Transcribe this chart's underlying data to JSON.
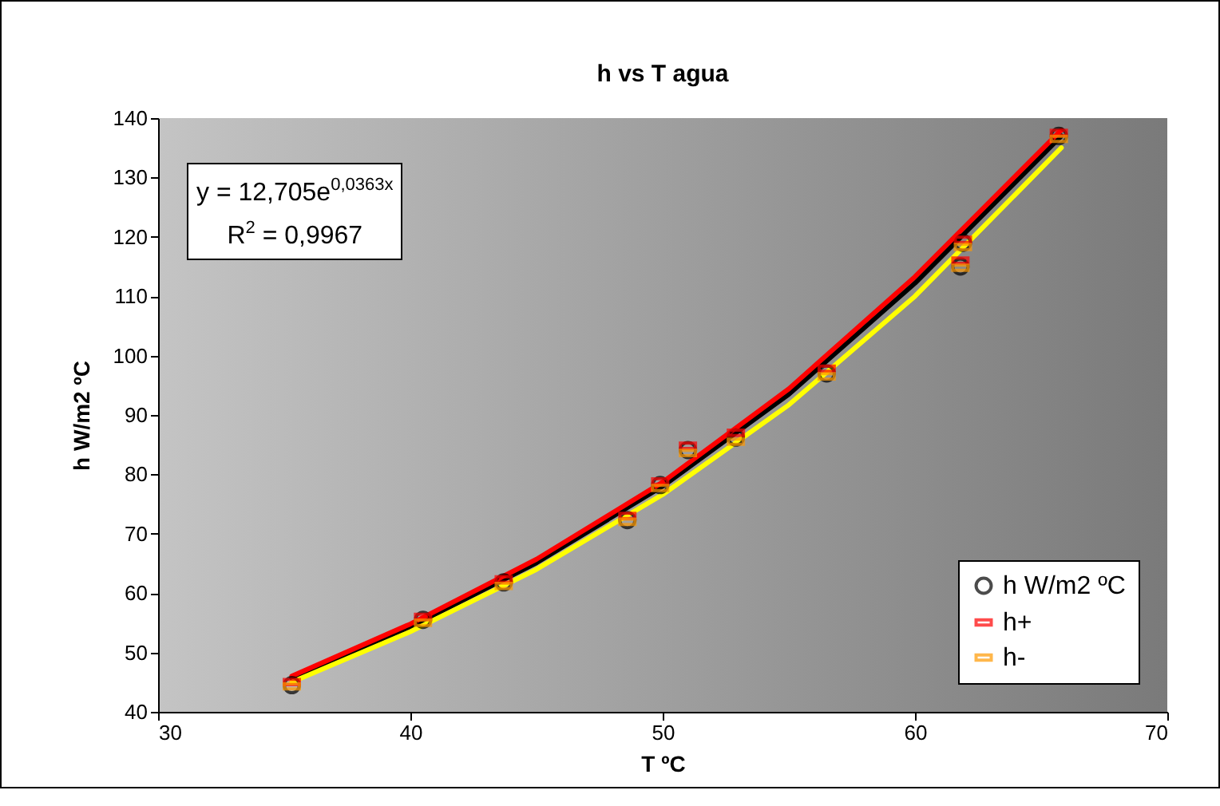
{
  "chart_data": {
    "type": "scatter",
    "title": "h vs T agua",
    "xlabel": "T ºC",
    "ylabel": "h W/m2 ºC",
    "xlim": [
      30,
      70
    ],
    "xticks": [
      30,
      40,
      50,
      60,
      70
    ],
    "ylim": [
      40,
      140
    ],
    "yticks": [
      40,
      50,
      60,
      70,
      80,
      90,
      100,
      110,
      120,
      130,
      140
    ],
    "grid": false,
    "legend": "bottom right",
    "marker": "circle",
    "annotations": [
      "y = 12,705e$^{0,0363x}$",
      "R$^{2}$ = 0,9967"
    ],
    "x": [
      35.3,
      40.5,
      43.7,
      48.6,
      49.9,
      51.0,
      52.9,
      56.5,
      61.9,
      61.8,
      65.7
    ],
    "series": [
      {
        "name": "h W/m2 ºC",
        "color": "#000000",
        "values": [
          44.5,
          55.5,
          61.8,
          72.3,
          78.2,
          84.1,
          86.2,
          97.0,
          119.0,
          115.0,
          137.0
        ]
      },
      {
        "name": "h+",
        "color": "#ff0000",
        "marker": "square",
        "values": [
          45.0,
          56.0,
          62.3,
          73.0,
          78.8,
          84.8,
          87.0,
          97.8,
          119.5,
          116.0,
          137.5
        ]
      },
      {
        "name": "h-",
        "color": "#ff9900",
        "marker": "square",
        "values": [
          44.3,
          55.0,
          61.2,
          72.0,
          77.7,
          83.6,
          85.5,
          96.5,
          118.3,
          114.8,
          136.5
        ]
      },
      {
        "type": "line",
        "color": "#000000",
        "marker": "none",
        "x": [
          35.3,
          40,
          45,
          50,
          55,
          60,
          65.8
        ],
        "values": [
          45.7,
          54.3,
          65.1,
          78.0,
          93.5,
          112.2,
          137.0
        ]
      },
      {
        "type": "line",
        "color": "#ff0000",
        "marker": "none",
        "x": [
          35.3,
          40,
          45,
          50,
          55,
          60,
          65.8
        ],
        "values": [
          46.0,
          54.8,
          65.7,
          78.7,
          94.4,
          113.3,
          138.0
        ]
      },
      {
        "type": "line",
        "color": "#ffff00",
        "marker": "none",
        "x": [
          35.3,
          40,
          45,
          50,
          55,
          60,
          65.8
        ],
        "values": [
          45.0,
          53.5,
          64.0,
          76.6,
          91.7,
          110.0,
          135.0
        ]
      }
    ]
  }
}
